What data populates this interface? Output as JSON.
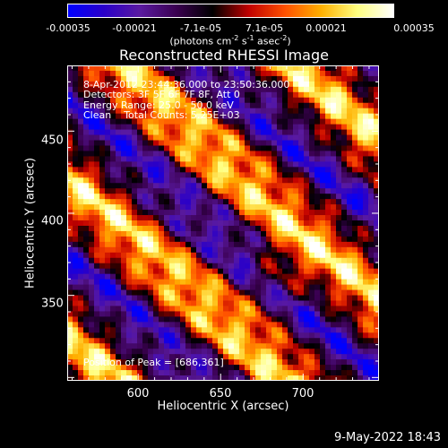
{
  "chart_data": {
    "type": "heatmap",
    "title": "Reconstructed RHESSI Image",
    "xlabel": "Heliocentric X (arcsec)",
    "ylabel": "Heliocentric Y (arcsec)",
    "xlim": [
      557,
      746
    ],
    "ylim": [
      298,
      490
    ],
    "x_ticks": [
      600,
      650,
      700
    ],
    "y_ticks": [
      350,
      400,
      450
    ],
    "colorbar": {
      "min": -0.00035,
      "max": 0.00035,
      "tick_labels": [
        "-0.00035",
        "-0.00021",
        "-7.1e-05",
        "7.1e-05",
        "0.00021",
        "0.00035"
      ],
      "tick_values": [
        -0.00035,
        -0.00021,
        -7.1e-05,
        7.1e-05,
        0.00021,
        0.00035
      ],
      "label_main": "(photons cm",
      "label_exp1": "-2",
      "label_s": " s",
      "label_exp2": "-1",
      "label_asec": " asec",
      "label_exp3": "-2",
      "label_close": ")",
      "colormap": [
        "#0000ff",
        "#2a00c8",
        "#5a1aa0",
        "#3a0050",
        "#000000",
        "#c00000",
        "#ff5000",
        "#ffb000",
        "#ffff80",
        "#ffffff"
      ]
    },
    "peak_position": [
      686,
      361
    ],
    "description_lines": {
      "time": "8-Apr-2012 23:44:36.000 to 23:50:36.000",
      "detectors": "Detectors: 3F 5F 6F 7F 8F, Att 0",
      "energy": "Energy Range: 25.0 - 50.0 keV",
      "clean": "Clean    Total Counts: 5.25E+03"
    },
    "peak_label": "Position of Peak = [686,361]"
  },
  "datestamp": "9-May-2022 18:43"
}
